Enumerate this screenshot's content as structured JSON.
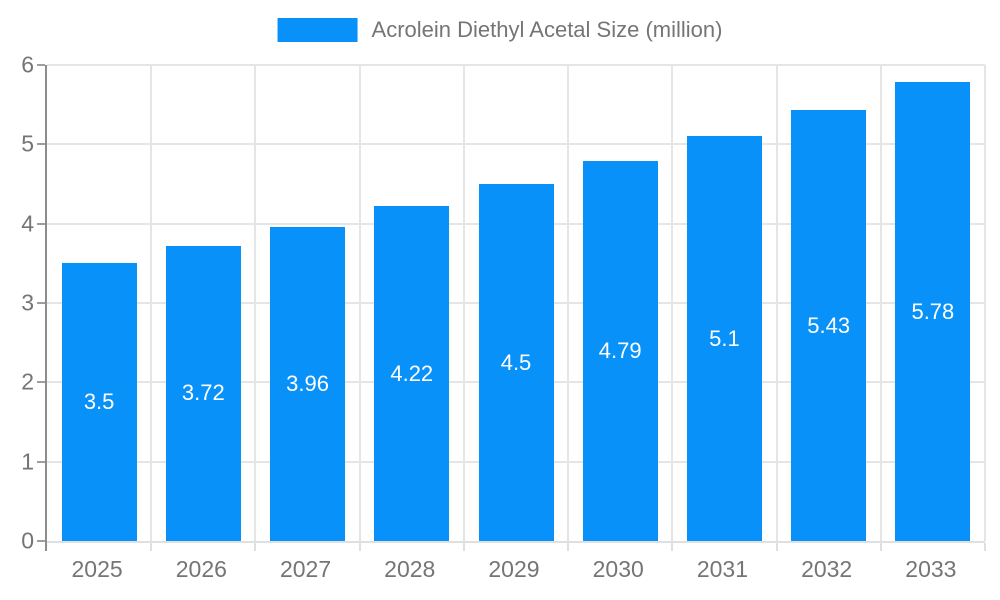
{
  "chart_data": {
    "type": "bar",
    "title": "Acrolein Diethyl Acetal Size (million)",
    "categories": [
      "2025",
      "2026",
      "2027",
      "2028",
      "2029",
      "2030",
      "2031",
      "2032",
      "2033"
    ],
    "values": [
      3.5,
      3.72,
      3.96,
      4.22,
      4.5,
      4.79,
      5.1,
      5.43,
      5.78
    ],
    "value_labels": [
      "3.5",
      "3.72",
      "3.96",
      "4.22",
      "4.5",
      "4.79",
      "5.1",
      "5.43",
      "5.78"
    ],
    "xlabel": "",
    "ylabel": "",
    "ylim": [
      0,
      6
    ],
    "yticks": [
      "0",
      "1",
      "2",
      "3",
      "4",
      "5",
      "6"
    ],
    "grid": true,
    "legend": {
      "position": "top",
      "entries": [
        "Acrolein Diethyl Acetal Size (million)"
      ]
    },
    "colors": {
      "bar": "#0991fa",
      "bar_label": "#ffffff",
      "axis_text": "#757575",
      "legend_text": "#757575",
      "gridline": "#e5e5e5",
      "y_axis_line": "#8c8c8c",
      "x_axis_line": "#e0e0e0",
      "tick": "#9e9e9e"
    }
  }
}
